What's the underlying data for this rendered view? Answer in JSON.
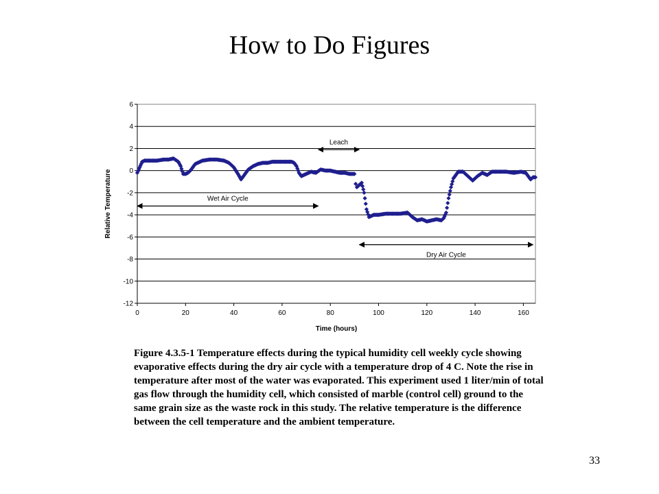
{
  "slide": {
    "title": "How to Do Figures",
    "caption": "Figure 4.3.5-1 Temperature effects during the typical humidity cell weekly cycle showing evaporative effects during the dry air cycle with a temperature drop of 4 C.  Note the rise in temperature after most of the water was evaporated. This experiment used 1 liter/min of total gas flow through the humidity cell, which consisted of marble (control cell) ground to the same grain size as the waste rock in this study. The relative temperature is the difference between the cell temperature and the ambient temperature.",
    "page_number": "33"
  },
  "chart_data": {
    "type": "scatter",
    "title": "",
    "xlabel": "Time (hours)",
    "ylabel": "Relative Temperature",
    "xlim": [
      0,
      165
    ],
    "ylim": [
      -12,
      6
    ],
    "xticks": [
      "0",
      "20",
      "40",
      "60",
      "80",
      "100",
      "120",
      "140",
      "160"
    ],
    "yticks": [
      "6",
      "4",
      "2",
      "0",
      "-2",
      "-4",
      "-6",
      "-8",
      "-10",
      "-12"
    ],
    "grid": "horizontal",
    "marker_color": "#1f1f8f",
    "series": [
      {
        "name": "",
        "x": [
          0,
          1,
          2,
          3,
          5,
          8,
          11,
          13,
          15,
          17,
          18,
          19,
          20,
          21,
          22,
          23,
          24,
          25,
          27,
          30,
          33,
          36,
          38,
          40,
          42,
          43,
          44,
          46,
          48,
          50,
          52,
          54,
          56,
          58,
          60,
          62,
          64,
          65,
          66,
          67,
          68,
          70,
          72,
          74,
          76,
          78,
          80,
          82,
          84,
          86,
          88,
          90,
          90.5,
          91,
          92,
          93,
          94,
          95,
          96,
          98,
          100,
          103,
          106,
          109,
          112,
          114,
          116,
          118,
          120,
          122,
          124,
          126,
          127,
          128,
          129,
          130,
          131,
          132,
          133,
          135,
          137,
          139,
          141,
          143,
          145,
          147,
          150,
          153,
          156,
          159,
          161,
          162,
          163,
          164,
          165
        ],
        "y": [
          -0.2,
          0.3,
          0.8,
          0.9,
          0.9,
          0.9,
          1.0,
          1.0,
          1.1,
          0.8,
          0.4,
          -0.3,
          -0.3,
          -0.2,
          0.0,
          0.3,
          0.6,
          0.7,
          0.9,
          1.0,
          1.0,
          0.9,
          0.7,
          0.3,
          -0.4,
          -0.8,
          -0.5,
          0.1,
          0.4,
          0.6,
          0.7,
          0.7,
          0.8,
          0.8,
          0.8,
          0.8,
          0.8,
          0.7,
          0.4,
          -0.2,
          -0.5,
          -0.3,
          -0.1,
          -0.2,
          0.1,
          0.0,
          0.0,
          -0.1,
          -0.2,
          -0.2,
          -0.3,
          -0.3,
          -1.2,
          -1.5,
          -1.3,
          -1.1,
          -2.0,
          -3.5,
          -4.2,
          -4.0,
          -4.0,
          -3.9,
          -3.9,
          -3.9,
          -3.8,
          -4.2,
          -4.5,
          -4.4,
          -4.6,
          -4.5,
          -4.4,
          -4.5,
          -4.3,
          -3.8,
          -2.5,
          -1.5,
          -0.7,
          -0.4,
          -0.1,
          -0.1,
          -0.5,
          -0.9,
          -0.5,
          -0.2,
          -0.4,
          -0.1,
          -0.1,
          -0.1,
          -0.2,
          -0.1,
          -0.2,
          -0.5,
          -0.8,
          -0.6,
          -0.6
        ]
      }
    ],
    "annotations": [
      {
        "label": "Leach",
        "x_start": 75,
        "x_end": 92,
        "y": 1.9,
        "label_y": 2.6
      },
      {
        "label": "Wet Air Cycle",
        "x_start": 0,
        "x_end": 75,
        "y": -3.2,
        "label_y": -2.5
      },
      {
        "label": "Dry Air Cycle",
        "x_start": 92,
        "x_end": 164,
        "y": -6.7,
        "label_y": -7.6
      }
    ]
  }
}
